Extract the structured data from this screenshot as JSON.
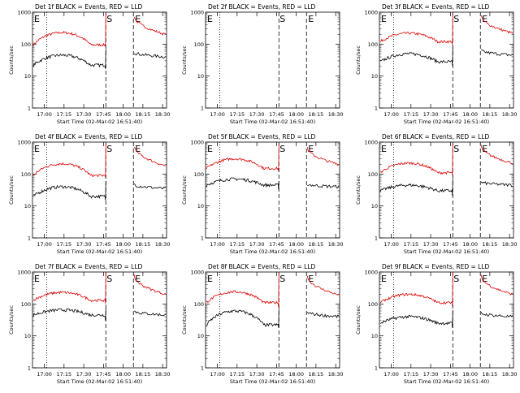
{
  "chart_data": {
    "type": "line",
    "ylabel": "Counts/sec",
    "ylim": [
      1,
      1000
    ],
    "yscale": "log",
    "xlim_minutes": [
      16.85,
      18.55
    ],
    "x_ticks": [
      "17:00",
      "17:15",
      "17:30",
      "17:45",
      "18:00",
      "18:15",
      "18:30"
    ],
    "x_tick_hours": [
      17.0,
      17.25,
      17.5,
      17.75,
      18.0,
      18.25,
      18.5
    ],
    "y_ticks": [
      "1",
      "10",
      "100",
      "1000"
    ],
    "y_tick_values": [
      1,
      10,
      100,
      1000
    ],
    "xlabel": "Start Time (02-Mar-02 16:51:40)",
    "series_legend": "BLACK = Events, RED = LLD",
    "colors": {
      "events": "#000000",
      "lld": "#dd0000"
    },
    "markers": {
      "dotted_hour": 17.03,
      "s_hour": 17.78,
      "e_hour": 18.13
    },
    "panels": [
      {
        "title": "Det 1f BLACK = Events, RED = LLD",
        "empty": false,
        "ev": [
          22,
          45,
          28,
          70,
          40
        ],
        "lld": [
          95,
          230,
          140,
          950,
          200
        ]
      },
      {
        "title": "Det 2f BLACK = Events, RED = LLD",
        "empty": true,
        "ev": [
          0,
          0,
          0,
          0,
          0
        ],
        "lld": [
          0,
          0,
          0,
          0,
          0
        ]
      },
      {
        "title": "Det 3f BLACK = Events, RED = LLD",
        "empty": false,
        "ev": [
          28,
          50,
          35,
          80,
          45
        ],
        "lld": [
          120,
          220,
          160,
          950,
          220
        ]
      },
      {
        "title": "Det 4f BLACK = Events, RED = LLD",
        "empty": false,
        "ev": [
          20,
          40,
          25,
          60,
          35
        ],
        "lld": [
          90,
          210,
          130,
          950,
          180
        ]
      },
      {
        "title": "Det 5f BLACK = Events, RED = LLD",
        "empty": false,
        "ev": [
          45,
          70,
          55,
          60,
          40
        ],
        "lld": [
          150,
          300,
          200,
          850,
          200
        ]
      },
      {
        "title": "Det 6f BLACK = Events, RED = LLD",
        "empty": false,
        "ev": [
          30,
          45,
          35,
          70,
          45
        ],
        "lld": [
          110,
          220,
          150,
          950,
          220
        ]
      },
      {
        "title": "Det 7f BLACK = Events, RED = LLD",
        "empty": false,
        "ev": [
          45,
          65,
          50,
          75,
          45
        ],
        "lld": [
          130,
          230,
          170,
          950,
          200
        ]
      },
      {
        "title": "Det 8f BLACK = Events, RED = LLD",
        "empty": false,
        "ev": [
          22,
          60,
          30,
          70,
          40
        ],
        "lld": [
          110,
          240,
          130,
          950,
          190
        ]
      },
      {
        "title": "Det 9f BLACK = Events, RED = LLD",
        "empty": false,
        "ev": [
          25,
          40,
          30,
          65,
          40
        ],
        "lld": [
          110,
          200,
          140,
          950,
          200
        ]
      }
    ]
  }
}
